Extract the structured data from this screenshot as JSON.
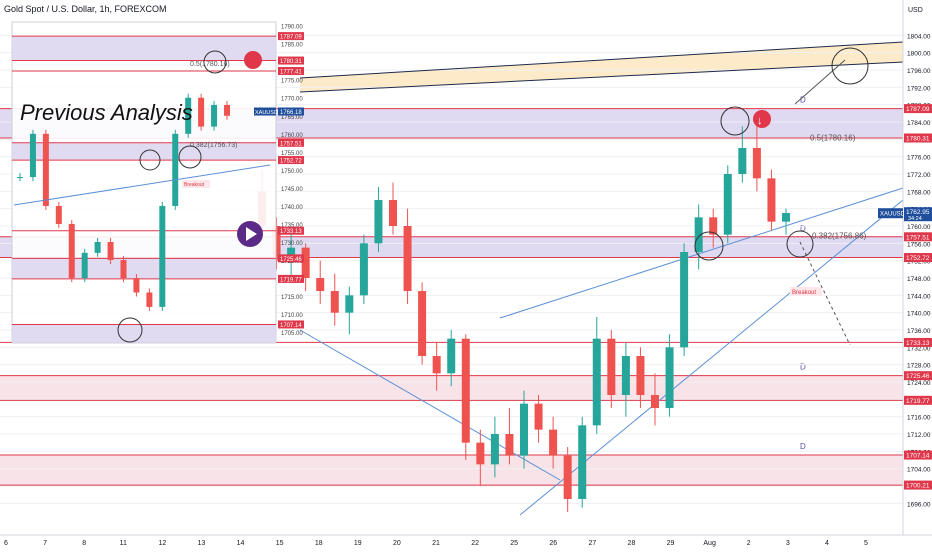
{
  "header": {
    "symbol_title": "Gold Spot / U.S. Dollar, 1h, FOREXCOM",
    "currency": "USD"
  },
  "chart_data": {
    "type": "candlestick",
    "title": "Gold Spot / U.S. Dollar, 1h, FOREXCOM",
    "ylim": [
      1694,
      1808
    ],
    "y_ticks": [
      "1696.00",
      "1700.00",
      "1704.00",
      "1708.00",
      "1712.00",
      "1716.00",
      "1720.00",
      "1724.00",
      "1728.00",
      "1732.00",
      "1736.00",
      "1740.00",
      "1744.00",
      "1748.00",
      "1752.00",
      "1756.00",
      "1760.00",
      "1764.00",
      "1768.00",
      "1772.00",
      "1776.00",
      "1780.00",
      "1784.00",
      "1788.00",
      "1792.00",
      "1796.00",
      "1800.00",
      "1804.00"
    ],
    "x_ticks": [
      "6",
      "7",
      "8",
      "11",
      "12",
      "13",
      "14",
      "15",
      "18",
      "19",
      "20",
      "21",
      "22",
      "25",
      "26",
      "27",
      "28",
      "29",
      "Aug",
      "2",
      "3",
      "4",
      "5"
    ],
    "last_price": 1762.95,
    "last_price_label": "XAUUSD",
    "last_price_countdown": "34:24",
    "price_lines": [
      {
        "value": 1787.09,
        "label": "1787.09"
      },
      {
        "value": 1780.31,
        "label": "1780.31"
      },
      {
        "value": 1757.51,
        "label": "1757.51"
      },
      {
        "value": 1752.72,
        "label": "1752.72"
      },
      {
        "value": 1733.13,
        "label": "1733.13"
      },
      {
        "value": 1725.46,
        "label": "1725.46"
      },
      {
        "value": 1719.77,
        "label": "1719.77"
      },
      {
        "value": 1707.14,
        "label": "1707.14"
      },
      {
        "value": 1700.21,
        "label": "1700.21"
      }
    ],
    "zones": [
      {
        "from": 1780.31,
        "to": 1787.09,
        "color": "#d9d2ef",
        "mark": "D"
      },
      {
        "from": 1752.72,
        "to": 1757.51,
        "color": "#d9d2ef",
        "mark": "D"
      },
      {
        "from": 1719.77,
        "to": 1725.46,
        "color": "#f7dfe4",
        "mark": "D"
      },
      {
        "from": 1700.21,
        "to": 1707.14,
        "color": "#f7dfe4",
        "mark": "D"
      }
    ],
    "fib_labels": [
      "0.5(1780.16)",
      "0.382(1756.86)"
    ],
    "annotations": [
      "Breakout"
    ],
    "series": [
      {
        "x": 0,
        "o": 1768,
        "h": 1773,
        "l": 1757,
        "c": 1760
      },
      {
        "x": 1,
        "o": 1760,
        "h": 1762,
        "l": 1750,
        "c": 1752
      },
      {
        "x": 2,
        "o": 1752,
        "h": 1758,
        "l": 1748,
        "c": 1755
      },
      {
        "x": 3,
        "o": 1755,
        "h": 1756,
        "l": 1745,
        "c": 1748
      },
      {
        "x": 4,
        "o": 1748,
        "h": 1752,
        "l": 1742,
        "c": 1745
      },
      {
        "x": 5,
        "o": 1745,
        "h": 1749,
        "l": 1737,
        "c": 1740
      },
      {
        "x": 6,
        "o": 1740,
        "h": 1746,
        "l": 1735,
        "c": 1744
      },
      {
        "x": 7,
        "o": 1744,
        "h": 1758,
        "l": 1742,
        "c": 1756
      },
      {
        "x": 8,
        "o": 1756,
        "h": 1769,
        "l": 1754,
        "c": 1766
      },
      {
        "x": 9,
        "o": 1766,
        "h": 1770,
        "l": 1758,
        "c": 1760
      },
      {
        "x": 10,
        "o": 1760,
        "h": 1764,
        "l": 1742,
        "c": 1745
      },
      {
        "x": 11,
        "o": 1745,
        "h": 1747,
        "l": 1728,
        "c": 1730
      },
      {
        "x": 12,
        "o": 1730,
        "h": 1733,
        "l": 1722,
        "c": 1726
      },
      {
        "x": 13,
        "o": 1726,
        "h": 1736,
        "l": 1723,
        "c": 1734
      },
      {
        "x": 14,
        "o": 1734,
        "h": 1735,
        "l": 1706,
        "c": 1710
      },
      {
        "x": 15,
        "o": 1710,
        "h": 1713,
        "l": 1700,
        "c": 1705
      },
      {
        "x": 16,
        "o": 1705,
        "h": 1716,
        "l": 1702,
        "c": 1712
      },
      {
        "x": 17,
        "o": 1712,
        "h": 1718,
        "l": 1705,
        "c": 1707
      },
      {
        "x": 18,
        "o": 1707,
        "h": 1722,
        "l": 1704,
        "c": 1719
      },
      {
        "x": 19,
        "o": 1719,
        "h": 1721,
        "l": 1710,
        "c": 1713
      },
      {
        "x": 20,
        "o": 1713,
        "h": 1716,
        "l": 1704,
        "c": 1707
      },
      {
        "x": 21,
        "o": 1707,
        "h": 1709,
        "l": 1694,
        "c": 1697
      },
      {
        "x": 22,
        "o": 1697,
        "h": 1716,
        "l": 1695,
        "c": 1714
      },
      {
        "x": 23,
        "o": 1714,
        "h": 1739,
        "l": 1712,
        "c": 1734
      },
      {
        "x": 24,
        "o": 1734,
        "h": 1736,
        "l": 1718,
        "c": 1721
      },
      {
        "x": 25,
        "o": 1721,
        "h": 1733,
        "l": 1716,
        "c": 1730
      },
      {
        "x": 26,
        "o": 1730,
        "h": 1732,
        "l": 1718,
        "c": 1721
      },
      {
        "x": 27,
        "o": 1721,
        "h": 1726,
        "l": 1714,
        "c": 1718
      },
      {
        "x": 28,
        "o": 1718,
        "h": 1735,
        "l": 1716,
        "c": 1732
      },
      {
        "x": 29,
        "o": 1732,
        "h": 1756,
        "l": 1730,
        "c": 1754
      },
      {
        "x": 30,
        "o": 1754,
        "h": 1765,
        "l": 1750,
        "c": 1762
      },
      {
        "x": 31,
        "o": 1762,
        "h": 1764,
        "l": 1755,
        "c": 1758
      },
      {
        "x": 32,
        "o": 1758,
        "h": 1774,
        "l": 1756,
        "c": 1772
      },
      {
        "x": 33,
        "o": 1772,
        "h": 1783,
        "l": 1770,
        "c": 1778
      },
      {
        "x": 34,
        "o": 1778,
        "h": 1786,
        "l": 1768,
        "c": 1771
      },
      {
        "x": 35,
        "o": 1771,
        "h": 1773,
        "l": 1759,
        "c": 1761
      },
      {
        "x": 36,
        "o": 1761,
        "h": 1764,
        "l": 1758,
        "c": 1763
      }
    ]
  },
  "prev_panel": {
    "caption": "Previous Analysis",
    "ylim": [
      1702,
      1791
    ],
    "y_ticks": [
      "1705.00",
      "1710.00",
      "1715.00",
      "1720.00",
      "1725.00",
      "1730.00",
      "1735.00",
      "1740.00",
      "1745.00",
      "1750.00",
      "1755.00",
      "1760.00",
      "1765.00",
      "1770.00",
      "1775.00",
      "1780.00",
      "1785.00",
      "1790.00"
    ],
    "last_price": 1766.18,
    "last_price_label": "XAUUSD",
    "price_lines": [
      {
        "value": 1787.09,
        "label": "1787.09"
      },
      {
        "value": 1780.31,
        "label": "1780.31"
      },
      {
        "value": 1777.41,
        "label": "1777.41"
      },
      {
        "value": 1757.51,
        "label": "1757.51"
      },
      {
        "value": 1752.72,
        "label": "1752.72"
      },
      {
        "value": 1733.13,
        "label": "1733.13"
      },
      {
        "value": 1725.46,
        "label": "1725.46"
      },
      {
        "value": 1719.77,
        "label": "1719.77"
      },
      {
        "value": 1707.14,
        "label": "1707.14"
      }
    ],
    "fib_labels": [
      "0.5(1780.16)",
      "0.382(1756.73)"
    ],
    "annotations": [
      "Breakout"
    ]
  },
  "colors": {
    "up": "#26a69a",
    "down": "#ef5350",
    "zone_purple": "#d9d2ef",
    "zone_pink": "#f7dfe4",
    "zone_orange": "#fbe3b5",
    "line_red": "#e0374a",
    "trend_blue": "#5b8fd6"
  }
}
